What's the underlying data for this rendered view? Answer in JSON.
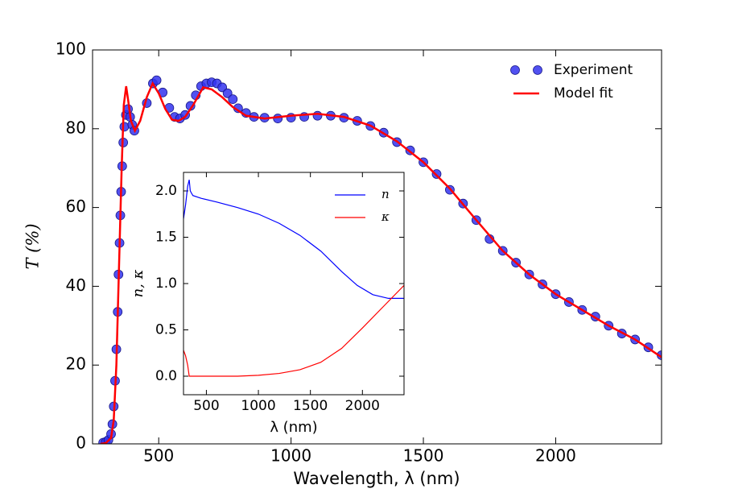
{
  "chart_data": [
    {
      "type": "line",
      "x_label": "Wavelength, λ (nm)",
      "y_label": "T (%)",
      "xlim": [
        250,
        2400
      ],
      "ylim": [
        0,
        100
      ],
      "xticks": [
        500,
        1000,
        1500,
        2000
      ],
      "yticks": [
        0,
        20,
        40,
        60,
        80,
        100
      ],
      "grid": false,
      "legend": "upper right",
      "series": [
        {
          "name": "Experiment",
          "color": "#3333ee",
          "marker": "circle",
          "x": [
            290,
            300,
            310,
            320,
            325,
            330,
            335,
            340,
            345,
            348,
            352,
            355,
            358,
            362,
            366,
            370,
            376,
            384,
            392,
            400,
            408,
            455,
            478,
            492,
            515,
            540,
            560,
            580,
            600,
            620,
            640,
            660,
            680,
            700,
            720,
            740,
            760,
            780,
            800,
            830,
            860,
            900,
            950,
            1000,
            1050,
            1100,
            1150,
            1200,
            1250,
            1300,
            1350,
            1400,
            1450,
            1500,
            1550,
            1600,
            1650,
            1700,
            1750,
            1800,
            1850,
            1900,
            1950,
            2000,
            2050,
            2100,
            2150,
            2200,
            2250,
            2300,
            2350,
            2400
          ],
          "values": [
            0.3,
            0.5,
            1,
            2.5,
            5,
            9.5,
            16,
            24,
            33.5,
            43,
            51,
            58,
            64,
            70.5,
            76.5,
            80.5,
            83.5,
            85,
            83,
            81,
            79.5,
            86.5,
            91.5,
            92.3,
            89.2,
            85.3,
            83,
            82.6,
            83.5,
            85.8,
            88.5,
            90.8,
            91.5,
            91.8,
            91.5,
            90.5,
            89,
            87.5,
            85.2,
            84,
            83,
            82.8,
            82.6,
            82.8,
            83,
            83.3,
            83.3,
            82.8,
            82,
            80.7,
            79,
            76.6,
            74.5,
            71.5,
            68.5,
            64.5,
            61,
            56.8,
            52,
            49,
            46,
            43,
            40.5,
            38,
            36,
            34,
            32.3,
            30,
            28,
            26.5,
            24.5,
            22.5
          ]
        },
        {
          "name": "Model fit",
          "color": "#ff0000",
          "marker": "none",
          "x": [
            280,
            300,
            320,
            330,
            340,
            350,
            360,
            368,
            377,
            385,
            395,
            410,
            430,
            455,
            477,
            500,
            525,
            550,
            575,
            600,
            630,
            668,
            700,
            740,
            780,
            830,
            900,
            1000,
            1100,
            1200,
            1300,
            1400,
            1500,
            1600,
            1700,
            1800,
            1900,
            2000,
            2100,
            2200,
            2300,
            2400
          ],
          "values": [
            0,
            0.2,
            1.5,
            6,
            20,
            45,
            70,
            86,
            90.8,
            87,
            82,
            79.5,
            82,
            88,
            91.5,
            89,
            85,
            82.3,
            82,
            83,
            86,
            90.5,
            90,
            88,
            85.5,
            83.3,
            82.6,
            83.3,
            83.8,
            83,
            80.8,
            76.8,
            71.5,
            64.8,
            56.8,
            49,
            43,
            38,
            34,
            30,
            26.5,
            22
          ]
        }
      ]
    },
    {
      "type": "line",
      "x_label": "λ (nm)",
      "y_label": "n, κ",
      "xlim": [
        280,
        2400
      ],
      "ylim": [
        -0.2,
        2.2
      ],
      "xticks": [
        500,
        1000,
        1500,
        2000
      ],
      "yticks": [
        {
          "value": 0,
          "label": "0.0"
        },
        0.5,
        {
          "value": 1,
          "label": "1.0"
        },
        1.5,
        {
          "value": 2,
          "label": "2.0"
        }
      ],
      "grid": false,
      "legend": "upper right",
      "series": [
        {
          "name": "n",
          "color": "#0000ff",
          "marker": "none",
          "x": [
            280,
            300,
            320,
            335,
            345,
            370,
            450,
            600,
            800,
            1000,
            1200,
            1400,
            1600,
            1800,
            1950,
            2100,
            2250,
            2400
          ],
          "values": [
            1.7,
            1.85,
            2.05,
            2.12,
            2.0,
            1.95,
            1.92,
            1.88,
            1.82,
            1.75,
            1.65,
            1.52,
            1.35,
            1.13,
            0.98,
            0.88,
            0.84,
            0.84
          ]
        },
        {
          "name": "κ",
          "color": "#ff0000",
          "marker": "none",
          "x": [
            280,
            300,
            320,
            335,
            400,
            800,
            1000,
            1200,
            1400,
            1600,
            1800,
            2000,
            2200,
            2400
          ],
          "values": [
            0.28,
            0.22,
            0.12,
            0,
            0,
            0,
            0.01,
            0.03,
            0.07,
            0.15,
            0.3,
            0.52,
            0.75,
            0.98
          ]
        }
      ]
    }
  ]
}
